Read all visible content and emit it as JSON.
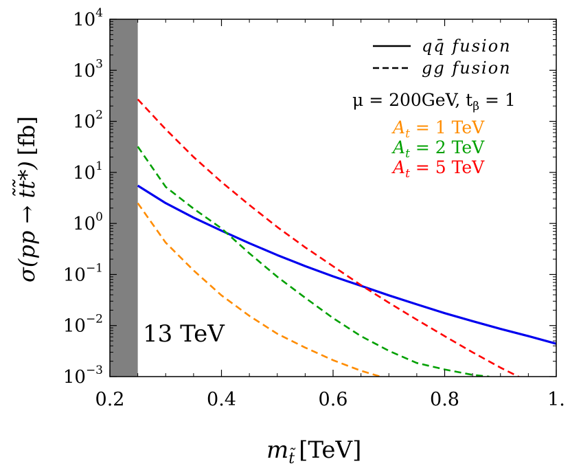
{
  "chart_data": {
    "type": "line",
    "title": "",
    "xlabel": "m_t̃ [TeV]",
    "xlabel_main": "m",
    "xlabel_sub": "t̃",
    "xlabel_unit": "[TeV]",
    "ylabel": "σ(pp → t̃t̃*) [fb]",
    "ylabel_main": "σ(pp → t̃t̃*)",
    "ylabel_unit": "[fb]",
    "xlim": [
      0.2,
      1.0
    ],
    "ylim": [
      0.001,
      10000
    ],
    "yscale": "log",
    "x_ticks": [
      {
        "value": 0.2,
        "label": "0.2"
      },
      {
        "value": 0.4,
        "label": "0.4"
      },
      {
        "value": 0.6,
        "label": "0.6"
      },
      {
        "value": 0.8,
        "label": "0.8"
      },
      {
        "value": 1.0,
        "label": "1."
      }
    ],
    "y_ticks": [
      {
        "exp": -3,
        "base": "10",
        "sup": "−3"
      },
      {
        "exp": -2,
        "base": "10",
        "sup": "−2"
      },
      {
        "exp": -1,
        "base": "10",
        "sup": "−1"
      },
      {
        "exp": 0,
        "base": "10",
        "sup": "0"
      },
      {
        "exp": 1,
        "base": "10",
        "sup": "1"
      },
      {
        "exp": 2,
        "base": "10",
        "sup": "2"
      },
      {
        "exp": 3,
        "base": "10",
        "sup": "3"
      },
      {
        "exp": 4,
        "base": "10",
        "sup": "4"
      }
    ],
    "excluded_band": {
      "x": [
        0.2,
        0.25
      ],
      "color": "#808080"
    },
    "series": [
      {
        "style": "solid",
        "color": "#0000ee",
        "x": [
          0.25,
          0.3,
          0.35,
          0.4,
          0.45,
          0.5,
          0.55,
          0.6,
          0.65,
          0.7,
          0.75,
          0.8,
          0.85,
          0.9,
          0.95,
          1.0
        ],
        "y": [
          5.5,
          2.5,
          1.3,
          0.72,
          0.41,
          0.24,
          0.146,
          0.092,
          0.06,
          0.039,
          0.026,
          0.0175,
          0.0122,
          0.0086,
          0.0062,
          0.0044
        ]
      },
      {
        "style": "dashed",
        "color": "#ff0000",
        "legend": "A_t = 5 TeV",
        "x": [
          0.25,
          0.3,
          0.35,
          0.4,
          0.45,
          0.5,
          0.55,
          0.6,
          0.65,
          0.7,
          0.75,
          0.8,
          0.85,
          0.9,
          0.95,
          1.0
        ],
        "y": [
          270,
          70,
          20,
          6.5,
          2.3,
          0.85,
          0.34,
          0.145,
          0.062,
          0.028,
          0.013,
          0.0062,
          0.003,
          0.0015,
          0.0008,
          0.00042
        ]
      },
      {
        "style": "dashed",
        "color": "#00a000",
        "legend": "A_t = 2 TeV",
        "x": [
          0.25,
          0.3,
          0.35,
          0.4,
          0.45,
          0.5,
          0.55,
          0.6,
          0.65,
          0.7,
          0.75,
          0.8,
          0.85,
          0.88
        ],
        "y": [
          32,
          5.2,
          1.95,
          0.8,
          0.26,
          0.09,
          0.035,
          0.014,
          0.0062,
          0.0032,
          0.00185,
          0.00138,
          0.00108,
          0.001
        ]
      },
      {
        "style": "dashed",
        "color": "#ff8c00",
        "legend": "A_t = 1 TeV",
        "x": [
          0.25,
          0.3,
          0.35,
          0.4,
          0.45,
          0.5,
          0.55,
          0.6,
          0.65,
          0.685
        ],
        "y": [
          2.5,
          0.42,
          0.12,
          0.039,
          0.0155,
          0.0069,
          0.0037,
          0.0021,
          0.0013,
          0.001
        ]
      }
    ],
    "legend": {
      "position": "top-right",
      "line_items": [
        {
          "style": "solid",
          "label": "qq̄  fusion"
        },
        {
          "style": "dashed",
          "label": "gg  fusion"
        }
      ],
      "params": "μ = 200GeV, t_β = 1",
      "params_main": "μ = 200GeV, t",
      "params_sub": "β",
      "params_tail": " = 1",
      "colored_items": [
        {
          "pre": "A",
          "sub": "t",
          "post": " = 1 TeV",
          "color": "#ff8c00"
        },
        {
          "pre": "A",
          "sub": "t",
          "post": " = 2 TeV",
          "color": "#00a000"
        },
        {
          "pre": "A",
          "sub": "t",
          "post": " = 5 TeV",
          "color": "#ff0000"
        }
      ]
    },
    "annotation": "13 TeV",
    "grid": false
  }
}
